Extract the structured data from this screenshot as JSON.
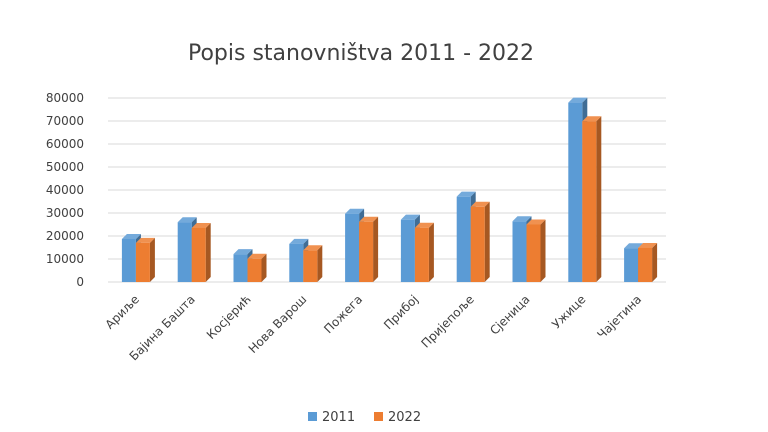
{
  "chart_data": {
    "type": "bar",
    "title": "Popis stanovništva 2011 - 2022",
    "xlabel": "",
    "ylabel": "",
    "categories": [
      "Ариље",
      "Бајина Башта",
      "Косјерић",
      "Нова Варош",
      "Пожега",
      "Прибој",
      "Пријепоље",
      "Сјеница",
      "Ужице",
      "Чајетина"
    ],
    "series": [
      {
        "name": "2011",
        "color": "#5B9BD5",
        "values": [
          18700,
          26000,
          12100,
          16600,
          29700,
          27100,
          37100,
          26400,
          78000,
          14700
        ]
      },
      {
        "name": "2022",
        "color": "#ED7D31",
        "values": [
          17000,
          23500,
          10100,
          13800,
          26200,
          23600,
          32700,
          25000,
          69900,
          14800
        ]
      }
    ],
    "ylim": [
      0,
      80000
    ],
    "yticks": [
      0,
      10000,
      20000,
      30000,
      40000,
      50000,
      60000,
      70000,
      80000
    ],
    "grid": true,
    "legend_position": "bottom"
  }
}
